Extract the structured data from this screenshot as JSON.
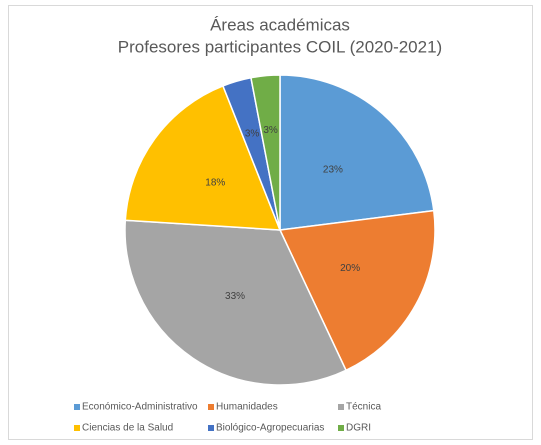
{
  "chart_data": {
    "type": "pie",
    "title": "Áreas académicas",
    "subtitle": "Profesores participantes COIL (2020-2021)",
    "categories": [
      "Económico-Administrativo",
      "Humanidades",
      "Técnica",
      "Ciencias de la Salud",
      "Biológico-Agropecuarias",
      "DGRI"
    ],
    "values": [
      23,
      20,
      33,
      18,
      3,
      3
    ],
    "value_labels": [
      "23%",
      "20%",
      "33%",
      "18%",
      "3%",
      "3%"
    ],
    "colors": [
      "#5b9bd5",
      "#ed7d31",
      "#a5a5a5",
      "#ffc000",
      "#4472c4",
      "#70ad47"
    ],
    "legend": "bottom"
  }
}
